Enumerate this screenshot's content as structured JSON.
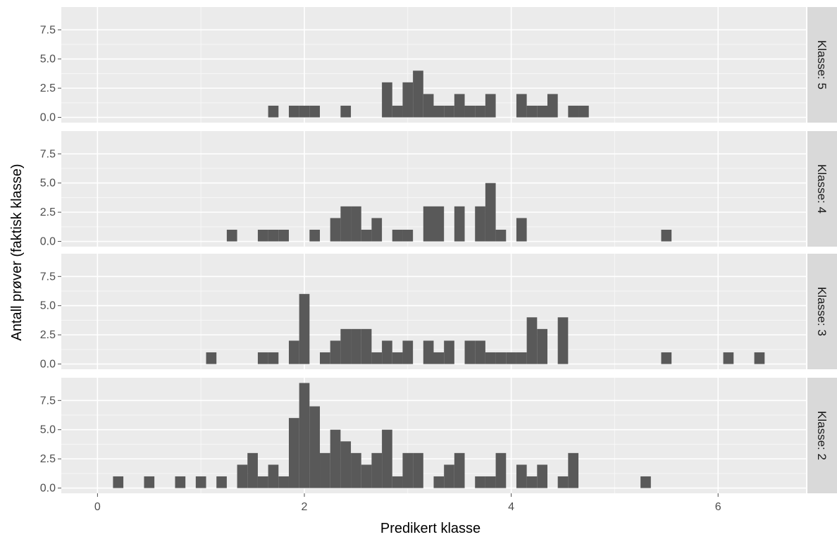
{
  "chart_data": {
    "type": "bar",
    "xlabel": "Predikert klasse",
    "ylabel": "Antall prøver (faktisk klasse)",
    "xlim": [
      -0.35,
      6.85
    ],
    "ylim": [
      -0.45,
      9.45
    ],
    "x_ticks": [
      0,
      2,
      4,
      6
    ],
    "x_tick_labels": [
      "0",
      "2",
      "4",
      "6"
    ],
    "y_ticks": [
      0,
      2.5,
      5,
      7.5
    ],
    "y_tick_labels": [
      "0.0",
      "2.5",
      "5.0",
      "7.5"
    ],
    "bin_width": 0.1,
    "bar_color": "#595959",
    "panel_background": "#ebebeb",
    "strip_background": "#d9d9d9",
    "grid": true,
    "panels": [
      {
        "strip": "Klasse: 5",
        "bins": [
          [
            1.7,
            1
          ],
          [
            1.9,
            1
          ],
          [
            2.0,
            1
          ],
          [
            2.1,
            1
          ],
          [
            2.4,
            1
          ],
          [
            2.8,
            3
          ],
          [
            2.9,
            1
          ],
          [
            3.0,
            3
          ],
          [
            3.1,
            4
          ],
          [
            3.2,
            2
          ],
          [
            3.3,
            1
          ],
          [
            3.4,
            1
          ],
          [
            3.5,
            2
          ],
          [
            3.6,
            1
          ],
          [
            3.7,
            1
          ],
          [
            3.8,
            2
          ],
          [
            4.1,
            2
          ],
          [
            4.2,
            1
          ],
          [
            4.3,
            1
          ],
          [
            4.4,
            2
          ],
          [
            4.6,
            1
          ],
          [
            4.7,
            1
          ]
        ]
      },
      {
        "strip": "Klasse: 4",
        "bins": [
          [
            1.3,
            1
          ],
          [
            1.6,
            1
          ],
          [
            1.7,
            1
          ],
          [
            1.8,
            1
          ],
          [
            2.1,
            1
          ],
          [
            2.3,
            2
          ],
          [
            2.4,
            3
          ],
          [
            2.5,
            3
          ],
          [
            2.6,
            1
          ],
          [
            2.7,
            2
          ],
          [
            2.9,
            1
          ],
          [
            3.0,
            1
          ],
          [
            3.2,
            3
          ],
          [
            3.3,
            3
          ],
          [
            3.5,
            3
          ],
          [
            3.7,
            3
          ],
          [
            3.8,
            5
          ],
          [
            3.9,
            1
          ],
          [
            4.1,
            2
          ],
          [
            5.5,
            1
          ]
        ]
      },
      {
        "strip": "Klasse: 3",
        "bins": [
          [
            1.1,
            1
          ],
          [
            1.6,
            1
          ],
          [
            1.7,
            1
          ],
          [
            1.9,
            2
          ],
          [
            2.0,
            6
          ],
          [
            2.2,
            1
          ],
          [
            2.3,
            2
          ],
          [
            2.4,
            3
          ],
          [
            2.5,
            3
          ],
          [
            2.6,
            3
          ],
          [
            2.7,
            1
          ],
          [
            2.8,
            2
          ],
          [
            2.9,
            1
          ],
          [
            3.0,
            2
          ],
          [
            3.2,
            2
          ],
          [
            3.3,
            1
          ],
          [
            3.4,
            2
          ],
          [
            3.6,
            2
          ],
          [
            3.7,
            2
          ],
          [
            3.8,
            1
          ],
          [
            3.9,
            1
          ],
          [
            4.0,
            1
          ],
          [
            4.1,
            1
          ],
          [
            4.2,
            4
          ],
          [
            4.3,
            3
          ],
          [
            4.5,
            4
          ],
          [
            5.5,
            1
          ],
          [
            6.1,
            1
          ],
          [
            6.4,
            1
          ]
        ]
      },
      {
        "strip": "Klasse: 2",
        "bins": [
          [
            0.2,
            1
          ],
          [
            0.5,
            1
          ],
          [
            0.8,
            1
          ],
          [
            1.0,
            1
          ],
          [
            1.2,
            1
          ],
          [
            1.4,
            2
          ],
          [
            1.5,
            3
          ],
          [
            1.6,
            1
          ],
          [
            1.7,
            2
          ],
          [
            1.8,
            1
          ],
          [
            1.9,
            6
          ],
          [
            2.0,
            9
          ],
          [
            2.1,
            7
          ],
          [
            2.2,
            3
          ],
          [
            2.3,
            5
          ],
          [
            2.4,
            4
          ],
          [
            2.5,
            3
          ],
          [
            2.6,
            2
          ],
          [
            2.7,
            3
          ],
          [
            2.8,
            5
          ],
          [
            2.9,
            1
          ],
          [
            3.0,
            3
          ],
          [
            3.1,
            3
          ],
          [
            3.3,
            1
          ],
          [
            3.4,
            2
          ],
          [
            3.5,
            3
          ],
          [
            3.7,
            1
          ],
          [
            3.8,
            1
          ],
          [
            3.9,
            3
          ],
          [
            4.1,
            2
          ],
          [
            4.2,
            1
          ],
          [
            4.3,
            2
          ],
          [
            4.5,
            1
          ],
          [
            4.6,
            3
          ],
          [
            5.3,
            1
          ]
        ]
      }
    ]
  }
}
